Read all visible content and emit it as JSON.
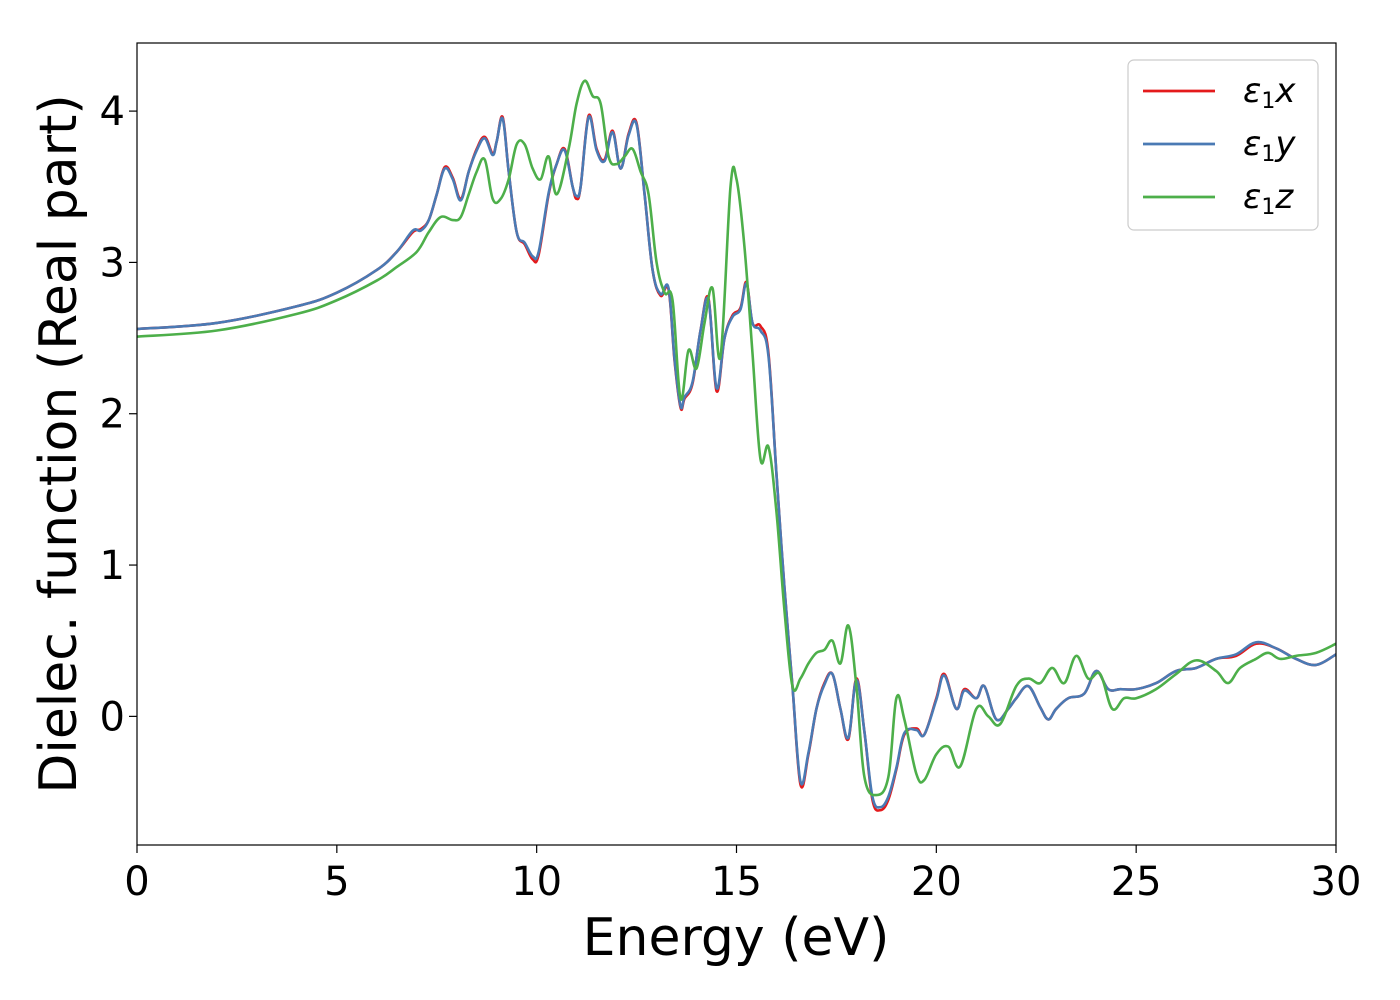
{
  "chart_data": {
    "type": "line",
    "title": "",
    "xlabel": "Energy (eV)",
    "ylabel": "Dielec. function (Real part)",
    "xlim": [
      0,
      30
    ],
    "ylim": [
      -0.85,
      4.45
    ],
    "xticks": [
      0,
      5,
      10,
      15,
      20,
      25,
      30
    ],
    "yticks": [
      0,
      1,
      2,
      3,
      4
    ],
    "grid": false,
    "legend_position": "top-right",
    "series": [
      {
        "name": "ε1x",
        "legend_base": "ε",
        "legend_sub": "1",
        "legend_var": "x",
        "color": "#e41a1c",
        "x": [
          0,
          2,
          4,
          5,
          6,
          6.5,
          6.9,
          7.1,
          7.3,
          7.5,
          7.7,
          7.9,
          8.1,
          8.3,
          8.5,
          8.7,
          8.9,
          9.0,
          9.15,
          9.3,
          9.5,
          9.7,
          9.9,
          10.05,
          10.3,
          10.5,
          10.7,
          10.9,
          11.0,
          11.1,
          11.3,
          11.5,
          11.7,
          11.9,
          12.1,
          12.3,
          12.5,
          12.7,
          12.9,
          13.1,
          13.3,
          13.45,
          13.6,
          13.7,
          13.9,
          14.1,
          14.3,
          14.5,
          14.7,
          14.9,
          15.1,
          15.25,
          15.4,
          15.6,
          15.8,
          16.0,
          16.2,
          16.4,
          16.6,
          16.8,
          17.0,
          17.2,
          17.4,
          17.6,
          17.8,
          18.0,
          18.2,
          18.4,
          18.6,
          18.8,
          19.0,
          19.2,
          19.5,
          19.7,
          20.0,
          20.2,
          20.5,
          20.7,
          21.0,
          21.2,
          21.5,
          21.8,
          22.0,
          22.3,
          22.6,
          22.8,
          23.0,
          23.3,
          23.7,
          24.0,
          24.3,
          24.6,
          25.0,
          25.5,
          26.0,
          26.5,
          27.0,
          27.5,
          28.0,
          28.5,
          29.0,
          29.5,
          30.0
        ],
        "y": [
          2.56,
          2.6,
          2.71,
          2.8,
          2.95,
          3.07,
          3.2,
          3.22,
          3.28,
          3.45,
          3.63,
          3.56,
          3.42,
          3.6,
          3.75,
          3.83,
          3.72,
          3.8,
          3.96,
          3.6,
          3.2,
          3.12,
          3.02,
          3.05,
          3.45,
          3.65,
          3.75,
          3.5,
          3.42,
          3.5,
          3.97,
          3.75,
          3.68,
          3.87,
          3.62,
          3.85,
          3.92,
          3.45,
          2.95,
          2.78,
          2.82,
          2.35,
          2.04,
          2.1,
          2.2,
          2.55,
          2.76,
          2.15,
          2.5,
          2.65,
          2.7,
          2.87,
          2.6,
          2.58,
          2.4,
          1.6,
          0.85,
          0.2,
          -0.45,
          -0.25,
          0.05,
          0.22,
          0.28,
          0.05,
          -0.15,
          0.25,
          -0.1,
          -0.55,
          -0.62,
          -0.55,
          -0.35,
          -0.12,
          -0.08,
          -0.12,
          0.12,
          0.28,
          0.05,
          0.18,
          0.12,
          0.2,
          -0.02,
          0.05,
          0.12,
          0.2,
          0.06,
          -0.02,
          0.05,
          0.12,
          0.15,
          0.3,
          0.18,
          0.18,
          0.18,
          0.22,
          0.3,
          0.32,
          0.38,
          0.4,
          0.48,
          0.45,
          0.38,
          0.34,
          0.41
        ]
      },
      {
        "name": "ε1y",
        "legend_base": "ε",
        "legend_sub": "1",
        "legend_var": "y",
        "color": "#4a7ab4",
        "x": [
          0,
          2,
          4,
          5,
          6,
          6.5,
          6.9,
          7.1,
          7.3,
          7.5,
          7.7,
          7.9,
          8.1,
          8.3,
          8.5,
          8.7,
          8.9,
          9.0,
          9.15,
          9.3,
          9.5,
          9.7,
          9.9,
          10.05,
          10.3,
          10.5,
          10.7,
          10.9,
          11.0,
          11.1,
          11.3,
          11.5,
          11.7,
          11.9,
          12.1,
          12.3,
          12.5,
          12.7,
          12.9,
          13.1,
          13.3,
          13.45,
          13.6,
          13.7,
          13.9,
          14.1,
          14.3,
          14.5,
          14.7,
          14.9,
          15.1,
          15.25,
          15.4,
          15.6,
          15.8,
          16.0,
          16.2,
          16.4,
          16.6,
          16.8,
          17.0,
          17.2,
          17.4,
          17.6,
          17.8,
          18.0,
          18.2,
          18.4,
          18.6,
          18.8,
          19.0,
          19.2,
          19.5,
          19.7,
          20.0,
          20.2,
          20.5,
          20.7,
          21.0,
          21.2,
          21.5,
          21.8,
          22.0,
          22.3,
          22.6,
          22.8,
          23.0,
          23.3,
          23.7,
          24.0,
          24.3,
          24.6,
          25.0,
          25.5,
          26.0,
          26.5,
          27.0,
          27.5,
          28.0,
          28.5,
          29.0,
          29.5,
          30.0
        ],
        "y": [
          2.56,
          2.6,
          2.71,
          2.8,
          2.95,
          3.07,
          3.21,
          3.21,
          3.28,
          3.45,
          3.62,
          3.55,
          3.41,
          3.6,
          3.74,
          3.82,
          3.71,
          3.8,
          3.95,
          3.6,
          3.2,
          3.13,
          3.04,
          3.07,
          3.46,
          3.65,
          3.74,
          3.5,
          3.44,
          3.5,
          3.96,
          3.74,
          3.67,
          3.86,
          3.62,
          3.84,
          3.91,
          3.45,
          2.95,
          2.79,
          2.83,
          2.36,
          2.05,
          2.11,
          2.21,
          2.55,
          2.75,
          2.17,
          2.5,
          2.64,
          2.69,
          2.86,
          2.6,
          2.55,
          2.38,
          1.6,
          0.85,
          0.2,
          -0.43,
          -0.24,
          0.05,
          0.21,
          0.28,
          0.05,
          -0.14,
          0.24,
          -0.1,
          -0.53,
          -0.6,
          -0.53,
          -0.34,
          -0.11,
          -0.09,
          -0.12,
          0.11,
          0.27,
          0.05,
          0.17,
          0.12,
          0.2,
          -0.02,
          0.05,
          0.12,
          0.2,
          0.06,
          -0.02,
          0.05,
          0.12,
          0.15,
          0.3,
          0.18,
          0.18,
          0.18,
          0.22,
          0.3,
          0.32,
          0.38,
          0.41,
          0.49,
          0.45,
          0.38,
          0.34,
          0.41
        ]
      },
      {
        "name": "ε1z",
        "legend_base": "ε",
        "legend_sub": "1",
        "legend_var": "z",
        "color": "#4daf4a",
        "x": [
          0,
          2,
          4,
          5,
          6,
          6.5,
          7.0,
          7.3,
          7.6,
          7.9,
          8.1,
          8.3,
          8.5,
          8.7,
          8.9,
          9.1,
          9.3,
          9.5,
          9.7,
          9.9,
          10.1,
          10.3,
          10.5,
          10.8,
          11.0,
          11.2,
          11.4,
          11.6,
          11.8,
          12.0,
          12.2,
          12.4,
          12.6,
          12.8,
          13.0,
          13.2,
          13.4,
          13.6,
          13.8,
          14.0,
          14.2,
          14.4,
          14.6,
          14.85,
          15.0,
          15.2,
          15.4,
          15.6,
          15.8,
          16.0,
          16.2,
          16.4,
          16.6,
          16.8,
          17.0,
          17.2,
          17.4,
          17.6,
          17.8,
          18.0,
          18.2,
          18.5,
          18.8,
          19.0,
          19.2,
          19.5,
          19.7,
          20.0,
          20.3,
          20.6,
          21.0,
          21.3,
          21.6,
          22.0,
          22.3,
          22.6,
          22.9,
          23.2,
          23.5,
          23.8,
          24.1,
          24.4,
          24.7,
          25.0,
          25.5,
          26.0,
          26.5,
          27.0,
          27.3,
          27.6,
          28.0,
          28.3,
          28.6,
          29.0,
          29.5,
          30.0
        ],
        "y": [
          2.51,
          2.55,
          2.66,
          2.75,
          2.88,
          2.97,
          3.07,
          3.2,
          3.3,
          3.28,
          3.3,
          3.45,
          3.6,
          3.68,
          3.42,
          3.42,
          3.55,
          3.78,
          3.78,
          3.62,
          3.55,
          3.7,
          3.45,
          3.75,
          4.05,
          4.2,
          4.1,
          4.05,
          3.7,
          3.65,
          3.7,
          3.75,
          3.6,
          3.45,
          3.0,
          2.8,
          2.75,
          2.1,
          2.42,
          2.3,
          2.6,
          2.83,
          2.38,
          3.5,
          3.55,
          3.1,
          2.4,
          1.7,
          1.78,
          1.35,
          0.7,
          0.2,
          0.25,
          0.35,
          0.42,
          0.44,
          0.5,
          0.35,
          0.6,
          0.2,
          -0.4,
          -0.52,
          -0.4,
          0.12,
          -0.02,
          -0.38,
          -0.42,
          -0.25,
          -0.2,
          -0.33,
          0.05,
          0.0,
          -0.05,
          0.2,
          0.25,
          0.22,
          0.32,
          0.22,
          0.4,
          0.25,
          0.28,
          0.05,
          0.12,
          0.12,
          0.18,
          0.28,
          0.37,
          0.3,
          0.22,
          0.32,
          0.38,
          0.42,
          0.38,
          0.4,
          0.42,
          0.48
        ]
      }
    ]
  }
}
